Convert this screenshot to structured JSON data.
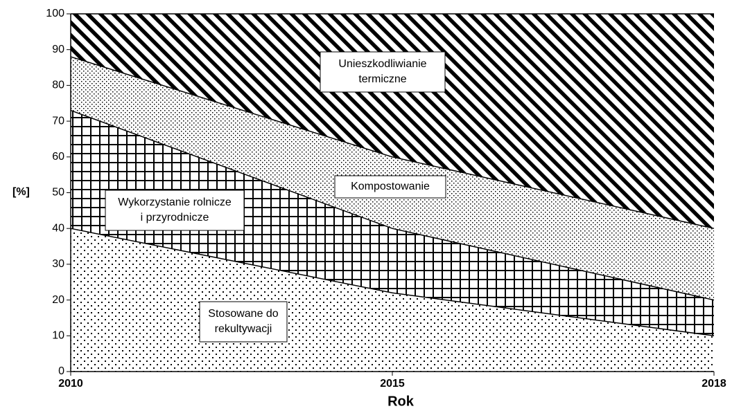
{
  "chart_data": {
    "type": "stacked_area",
    "x_label": "Rok",
    "y_label": "[%]",
    "categories": [
      "2010",
      "2015",
      "2018"
    ],
    "ylim": [
      0,
      100
    ],
    "yticks": [
      0,
      10,
      20,
      30,
      40,
      50,
      60,
      70,
      80,
      90,
      100
    ],
    "series": [
      {
        "name": "Stosowane do\nrekultywacji",
        "color": "#000000",
        "pattern": "sparse-dots",
        "values": [
          40,
          22,
          10
        ]
      },
      {
        "name": "Wykorzystanie rolnicze\ni przyrodnicze",
        "color": "#000000",
        "pattern": "grid",
        "values": [
          33,
          18,
          10
        ]
      },
      {
        "name": "Kompostowanie",
        "color": "#000000",
        "pattern": "fine-dots",
        "values": [
          15,
          20,
          20
        ]
      },
      {
        "name": "Unieszkodliwianie\ntermiczne",
        "color": "#000000",
        "pattern": "diagonal",
        "values": [
          12,
          40,
          60
        ]
      }
    ]
  }
}
